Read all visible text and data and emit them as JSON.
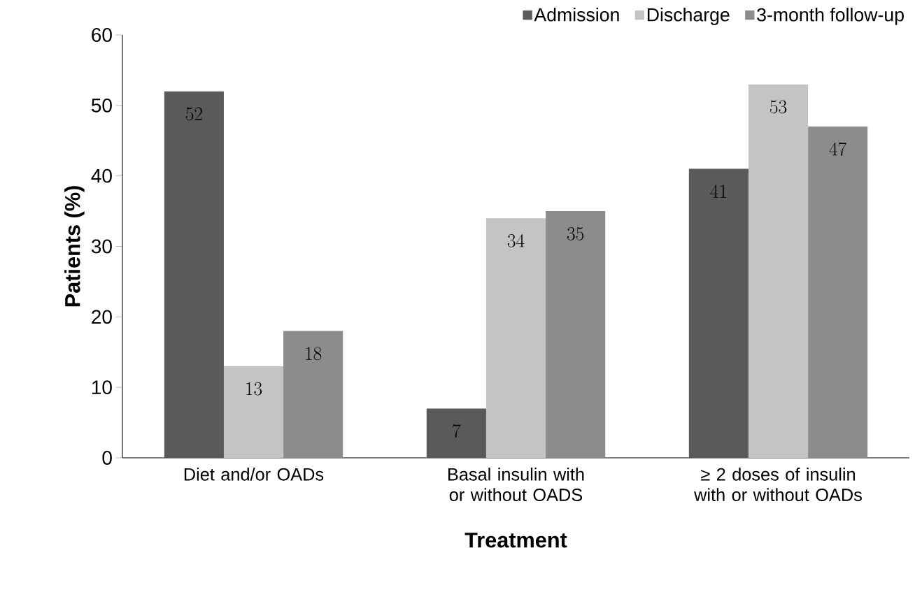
{
  "chart_data": {
    "type": "bar",
    "xlabel": "Treatment",
    "ylabel": "Patients (%)",
    "categories": [
      "Diet and/or OADs",
      "Basal insulin with or without OADS",
      "≥ 2 doses of insulin with or without OADs"
    ],
    "series": [
      {
        "name": "Admission",
        "color": "#5a5a5a",
        "values": [
          52,
          7,
          41
        ]
      },
      {
        "name": "Discharge",
        "color": "#c4c4c4",
        "values": [
          13,
          34,
          53
        ]
      },
      {
        "name": "3-month follow-up",
        "color": "#8c8c8c",
        "values": [
          18,
          35,
          47
        ]
      }
    ],
    "ylim": [
      0,
      60
    ],
    "yticks": [
      0,
      10,
      20,
      30,
      40,
      50,
      60
    ],
    "data_labels": true,
    "legend": "top right",
    "grid": false
  }
}
